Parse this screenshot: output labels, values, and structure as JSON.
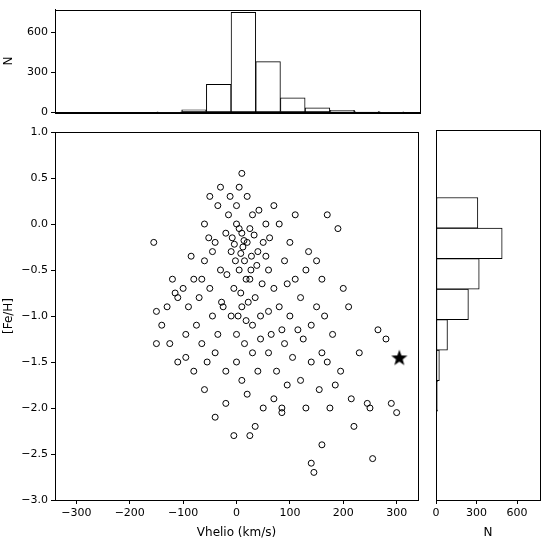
{
  "chart_data": [
    {
      "type": "histogram",
      "ylabel": "N",
      "bins": [
        -150,
        -104,
        -58,
        -12,
        34,
        80,
        126,
        172,
        218,
        264,
        310
      ],
      "values": [
        5,
        20,
        210,
        750,
        380,
        110,
        35,
        15,
        8,
        3
      ],
      "color": "#ffffff",
      "xlim": [
        -340,
        340
      ],
      "ylim": [
        0,
        770
      ],
      "yticks": [
        0,
        300,
        600
      ],
      "tick_labels": "y",
      "grid": false
    },
    {
      "type": "scatter",
      "xlabel": "Vhelio (km/s)",
      "ylabel": "[Fe/H]",
      "xlim": [
        -340,
        340
      ],
      "ylim": [
        -3,
        1
      ],
      "xticks": [
        {
          "value": -300,
          "label": "−300"
        },
        {
          "value": -200,
          "label": "−200"
        },
        {
          "value": -100,
          "label": "−100"
        },
        0,
        100,
        200,
        300
      ],
      "yticks": [
        {
          "value": -3,
          "label": "−3.0"
        },
        {
          "value": -2.5,
          "label": "−2.5"
        },
        {
          "value": -2,
          "label": "−2.0"
        },
        {
          "value": -1.5,
          "label": "−1.5"
        },
        {
          "value": -1,
          "label": "−1.0"
        },
        {
          "value": -0.5,
          "label": "−0.5"
        },
        {
          "value": 0,
          "label": "0.0"
        },
        {
          "value": 0.5,
          "label": "0.5"
        },
        {
          "value": 1,
          "label": "1.0"
        }
      ],
      "grid": false,
      "series": [
        {
          "marker": "circle",
          "color": "#000000",
          "x": [
            0,
            10,
            20,
            -10,
            30,
            5,
            15,
            -20,
            40,
            25,
            -30,
            50,
            0,
            -5,
            35,
            10,
            -40,
            60,
            20,
            -15,
            45,
            -50,
            70,
            30,
            0,
            -25,
            55,
            15,
            -35,
            5,
            -60,
            80,
            -45,
            65,
            25,
            -8,
            12,
            38,
            -18,
            48,
            8,
            -28,
            18,
            -70,
            -80,
            -90,
            -100,
            -75,
            -110,
            -95,
            -65,
            -55,
            -40,
            -20,
            0,
            10,
            30,
            40,
            60,
            75,
            90,
            100,
            110,
            120,
            130,
            140,
            150,
            160,
            90,
            100,
            110,
            80,
            70,
            -60,
            -50,
            -30,
            10,
            -45,
            -85,
            -120,
            -130,
            -140,
            -150,
            -155,
            -125,
            -110,
            -150,
            -80,
            -60,
            -40,
            -20,
            -5,
            20,
            35,
            50,
            70,
            85,
            95,
            120,
            130,
            140,
            145,
            140,
            155,
            160,
            170,
            180,
            175,
            190,
            195,
            200,
            210,
            215,
            220,
            230,
            245,
            255,
            250,
            265,
            280,
            290,
            300,
            170,
            150,
            165,
            185,
            125,
            105,
            85,
            60,
            45,
            -10,
            -35,
            55,
            28,
            -2,
            18,
            -12,
            42,
            62,
            3,
            -52,
            22,
            -65,
            95,
            115,
            135,
            160,
            85,
            25,
            -95,
            -115,
            5,
            14,
            -4,
            33,
            27,
            8
          ],
          "values": [
            0,
            -0.1,
            -0.2,
            -0.3,
            0.1,
            -0.5,
            -0.4,
            -0.1,
            -0.3,
            -0.6,
            -0.5,
            -0.2,
            0.2,
            -0.7,
            -0.8,
            -0.9,
            -0.2,
            -0.5,
            0.3,
            0.1,
            -1.0,
            -0.7,
            -0.7,
            -1.1,
            -1.2,
            -0.9,
            0,
            -1.3,
            0.2,
            0.4,
            -0.4,
            -0.9,
            -1.0,
            -1.2,
            -0.05,
            -0.15,
            -0.25,
            -0.45,
            -0.55,
            -0.65,
            -0.75,
            -0.85,
            -1.05,
            -0.8,
            -0.6,
            -0.9,
            -0.7,
            -1.1,
            -0.8,
            -1.2,
            -1.3,
            -1.5,
            -1.4,
            -1.6,
            -1.5,
            -1.7,
            -1.4,
            -1.6,
            -1.4,
            -1.6,
            -1.3,
            -1.0,
            -0.6,
            -0.8,
            -0.5,
            -1.1,
            -0.9,
            -0.6,
            -0.4,
            -0.2,
            0.1,
            0,
            0.2,
            0,
            0.3,
            0.4,
            0.55,
            -0.3,
            -0.35,
            -0.6,
            -0.9,
            -1.1,
            -0.95,
            -0.2,
            -1.3,
            -1.5,
            -1.3,
            -1.6,
            -1.8,
            -2.1,
            -1.95,
            -2.3,
            -1.85,
            -2.2,
            -2.0,
            -1.9,
            -2.0,
            -1.75,
            -1.7,
            -2.0,
            -2.6,
            -2.7,
            -1.5,
            -1.8,
            -2.4,
            -1.5,
            -1.2,
            -2.0,
            -0.05,
            -1.6,
            -0.7,
            -0.9,
            -1.9,
            -2.2,
            -1.4,
            -1.95,
            -2.55,
            -2.0,
            -1.15,
            -1.25,
            -1.95,
            -2.05,
            0.1,
            -0.4,
            -1.0,
            -1.75,
            -1.25,
            -1.45,
            -1.15,
            -0.95,
            -1.25,
            -1.0,
            -1.2,
            -0.35,
            -0.35,
            -0.4,
            -0.6,
            0.3,
            0.15,
            -0.15,
            -1.0,
            -0.15,
            -0.85,
            -0.6,
            -0.65,
            -1.15,
            -0.3,
            -1.4,
            -2.05,
            -2.3,
            -1.45,
            -0.75,
            -0.05,
            -0.18,
            -0.22,
            -0.12,
            -0.5,
            -0.32
          ]
        },
        {
          "marker": "star",
          "color": "#000000",
          "x": [
            305
          ],
          "values": [
            -1.45
          ]
        }
      ]
    },
    {
      "type": "histogram",
      "orientation": "horizontal",
      "xlabel": "N",
      "bins": [
        -2.7,
        -2.37,
        -2.04,
        -1.71,
        -1.38,
        -1.05,
        -0.72,
        -0.39,
        -0.06,
        0.27,
        0.6
      ],
      "values": [
        3,
        5,
        12,
        25,
        85,
        240,
        320,
        490,
        310,
        5
      ],
      "color": "#ffffff",
      "xlim": [
        0,
        770
      ],
      "xticks": [
        0,
        300,
        600
      ],
      "ylim": [
        -3,
        1
      ],
      "tick_labels": "x",
      "grid": false
    }
  ]
}
